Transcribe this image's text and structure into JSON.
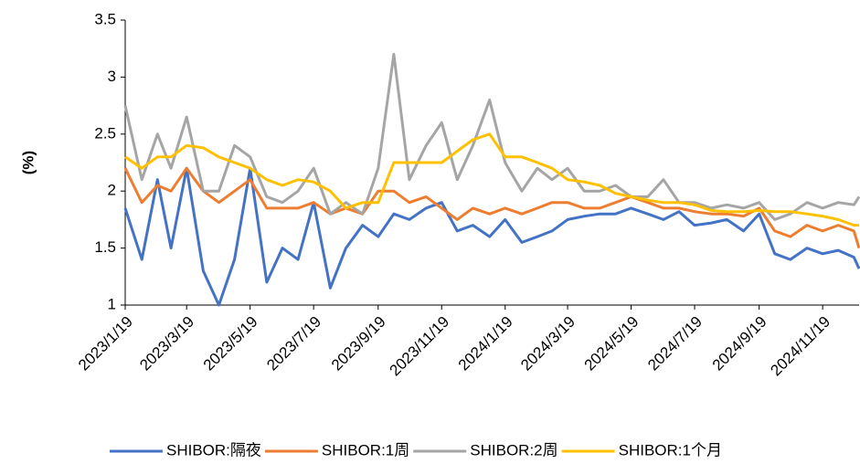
{
  "chart_data": {
    "type": "line",
    "y_label": "(%)",
    "x": [
      "2023/1/19",
      "2023/2/4",
      "2023/2/19",
      "2023/3/4",
      "2023/3/19",
      "2023/4/4",
      "2023/4/19",
      "2023/5/4",
      "2023/5/19",
      "2023/6/4",
      "2023/6/19",
      "2023/7/4",
      "2023/7/19",
      "2023/8/4",
      "2023/8/19",
      "2023/9/4",
      "2023/9/19",
      "2023/10/4",
      "2023/10/19",
      "2023/11/4",
      "2023/11/19",
      "2023/12/4",
      "2023/12/19",
      "2024/1/4",
      "2024/1/19",
      "2024/2/4",
      "2024/2/19",
      "2024/3/4",
      "2024/3/19",
      "2024/4/4",
      "2024/4/19",
      "2024/5/4",
      "2024/5/19",
      "2024/6/4",
      "2024/6/19",
      "2024/7/4",
      "2024/7/19",
      "2024/8/4",
      "2024/8/19",
      "2024/9/4",
      "2024/9/19",
      "2024/10/4",
      "2024/10/19",
      "2024/11/4",
      "2024/11/19",
      "2024/12/4",
      "2024/12/19",
      "2024/12/24"
    ],
    "series": [
      {
        "name": "SHIBOR:隔夜",
        "color": "#4472c4",
        "values": [
          1.85,
          1.4,
          2.1,
          1.5,
          2.2,
          1.3,
          1.0,
          1.4,
          2.2,
          1.2,
          1.5,
          1.4,
          1.9,
          1.15,
          1.5,
          1.7,
          1.6,
          1.8,
          1.75,
          1.85,
          1.9,
          1.65,
          1.7,
          1.6,
          1.75,
          1.55,
          1.6,
          1.65,
          1.75,
          1.78,
          1.8,
          1.8,
          1.85,
          1.8,
          1.75,
          1.82,
          1.7,
          1.72,
          1.75,
          1.65,
          1.8,
          1.45,
          1.4,
          1.5,
          1.45,
          1.48,
          1.42,
          1.32
        ]
      },
      {
        "name": "SHIBOR:1周",
        "color": "#ed7d31",
        "values": [
          2.2,
          1.9,
          2.05,
          2.0,
          2.2,
          2.0,
          1.9,
          2.0,
          2.1,
          1.85,
          1.85,
          1.85,
          1.9,
          1.8,
          1.85,
          1.8,
          2.0,
          2.0,
          1.9,
          1.95,
          1.85,
          1.75,
          1.85,
          1.8,
          1.85,
          1.8,
          1.85,
          1.9,
          1.9,
          1.85,
          1.85,
          1.9,
          1.95,
          1.9,
          1.85,
          1.85,
          1.82,
          1.8,
          1.8,
          1.78,
          1.85,
          1.65,
          1.6,
          1.7,
          1.65,
          1.7,
          1.65,
          1.5
        ]
      },
      {
        "name": "SHIBOR:2周",
        "color": "#a5a5a5",
        "values": [
          2.75,
          2.1,
          2.5,
          2.2,
          2.65,
          2.0,
          2.0,
          2.4,
          2.3,
          1.95,
          1.9,
          2.0,
          2.2,
          1.8,
          1.9,
          1.8,
          2.2,
          3.2,
          2.1,
          2.4,
          2.6,
          2.1,
          2.4,
          2.8,
          2.25,
          2.0,
          2.2,
          2.1,
          2.2,
          2.0,
          2.0,
          2.05,
          1.95,
          1.95,
          2.1,
          1.9,
          1.9,
          1.85,
          1.88,
          1.85,
          1.9,
          1.75,
          1.8,
          1.9,
          1.85,
          1.9,
          1.88,
          1.95
        ]
      },
      {
        "name": "SHIBOR:1个月",
        "color": "#ffc000",
        "values": [
          2.3,
          2.2,
          2.3,
          2.3,
          2.4,
          2.38,
          2.3,
          2.25,
          2.2,
          2.1,
          2.05,
          2.1,
          2.08,
          2.0,
          1.85,
          1.9,
          1.9,
          2.25,
          2.25,
          2.25,
          2.25,
          2.35,
          2.45,
          2.5,
          2.3,
          2.3,
          2.25,
          2.2,
          2.1,
          2.08,
          2.05,
          1.98,
          1.95,
          1.92,
          1.9,
          1.9,
          1.88,
          1.83,
          1.82,
          1.82,
          1.83,
          1.82,
          1.82,
          1.8,
          1.78,
          1.75,
          1.7,
          1.7
        ]
      }
    ],
    "xlim": [
      "2023/1/19",
      "2024/12/24"
    ],
    "xticks": [
      "2023/1/19",
      "2023/3/19",
      "2023/5/19",
      "2023/7/19",
      "2023/9/19",
      "2023/11/19",
      "2024/1/19",
      "2024/3/19",
      "2024/5/19",
      "2024/7/19",
      "2024/9/19",
      "2024/11/19"
    ],
    "ylim": [
      1,
      3.5
    ],
    "yticks": [
      1,
      1.5,
      2,
      2.5,
      3,
      3.5
    ],
    "legend": "bottom"
  }
}
